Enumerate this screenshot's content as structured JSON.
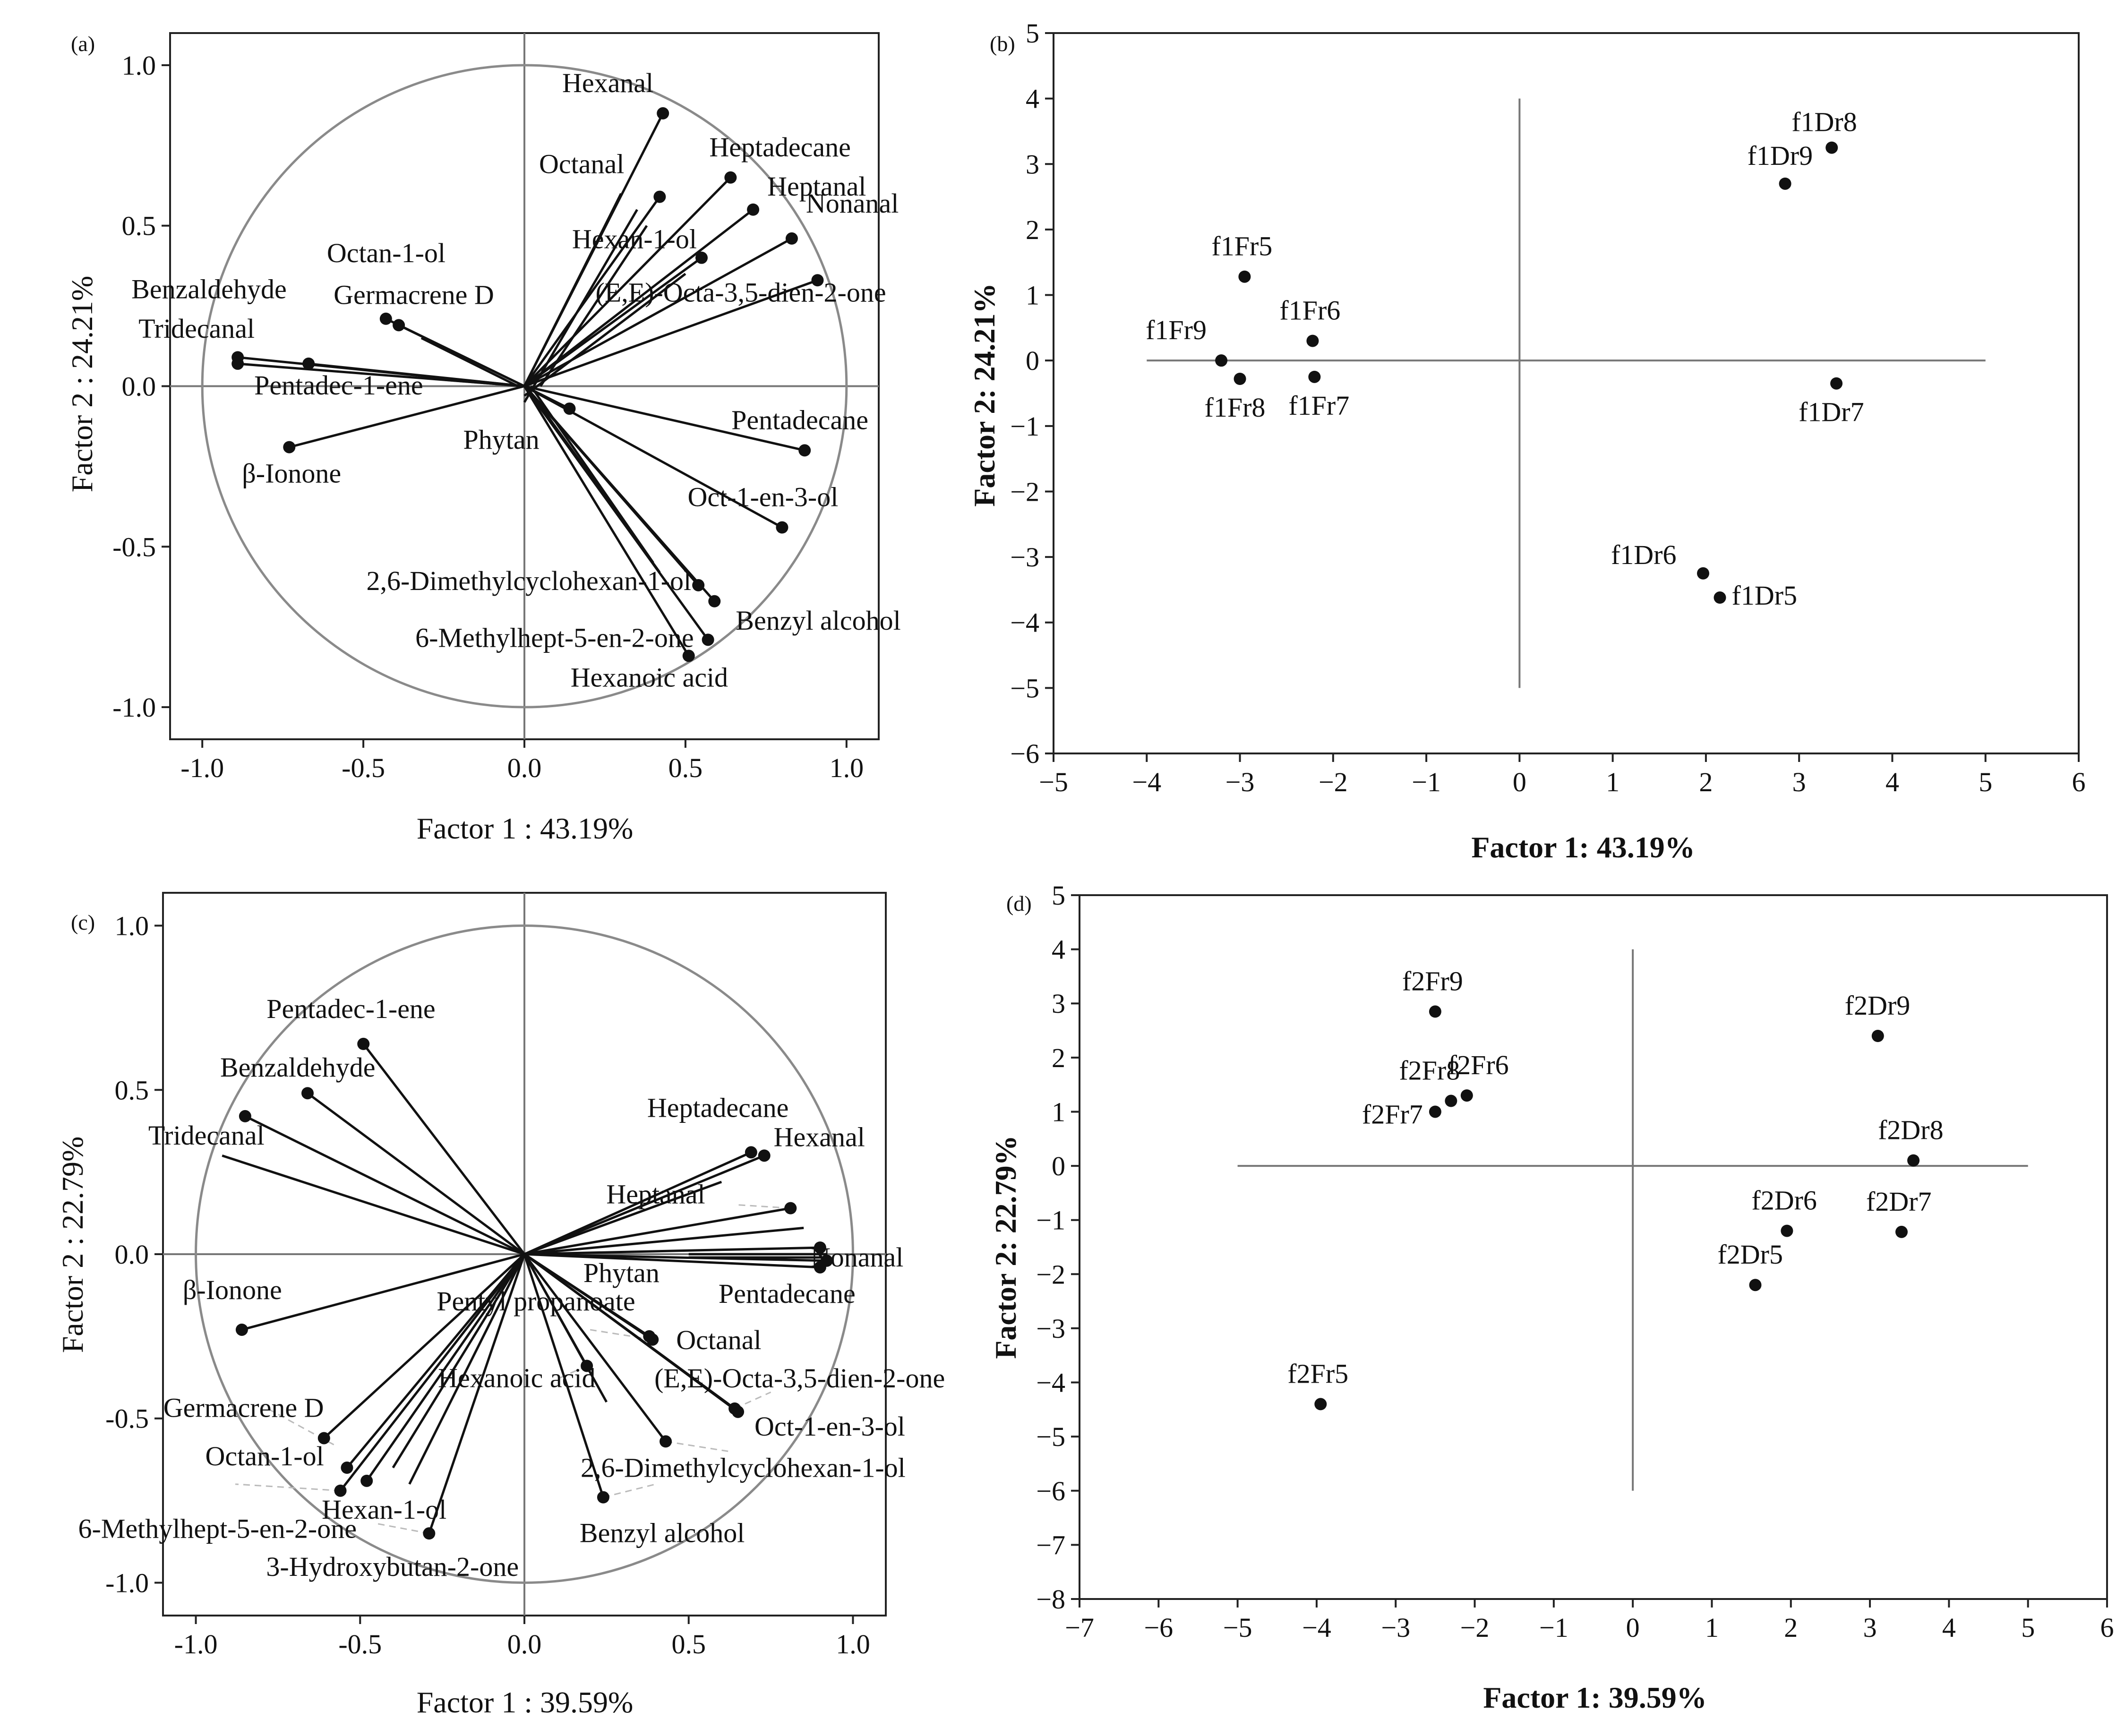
{
  "chart_data": [
    {
      "panel": "(a)",
      "type": "scatter",
      "subtype": "pca-loadings",
      "xlabel": "Factor 1 : 43.19%",
      "ylabel": "Factor 2 : 24.21%",
      "xlim": [
        -1.1,
        1.1
      ],
      "ylim": [
        -1.1,
        1.1
      ],
      "xticks": [
        -1.0,
        -0.5,
        0.0,
        0.5,
        1.0
      ],
      "yticks": [
        -1.0,
        -0.5,
        0.0,
        0.5,
        1.0
      ],
      "xtick_labels": [
        "-1.0",
        "-0.5",
        "0.0",
        "0.5",
        "1.0"
      ],
      "ytick_labels": [
        "-1.0",
        "-0.5",
        "0.0",
        "0.5",
        "1.0"
      ],
      "unit_circle": true,
      "points": [
        {
          "label": "Hexanal",
          "x": 0.43,
          "y": 0.85
        },
        {
          "label": "Octanal",
          "x": 0.42,
          "y": 0.59
        },
        {
          "label": "Heptadecane",
          "x": 0.64,
          "y": 0.65
        },
        {
          "label": "Heptanal",
          "x": 0.71,
          "y": 0.55
        },
        {
          "label": "Nonanal",
          "x": 0.83,
          "y": 0.46
        },
        {
          "label": "Hexan-1-ol",
          "x": 0.55,
          "y": 0.4
        },
        {
          "label": "(E,E)-Octa-3,5-dien-2-one",
          "x": 0.91,
          "y": 0.33
        },
        {
          "label": "Octan-1-ol",
          "x": -0.43,
          "y": 0.21
        },
        {
          "label": "Germacrene D",
          "x": -0.39,
          "y": 0.19
        },
        {
          "label": "Benzaldehyde",
          "x": -0.89,
          "y": 0.09
        },
        {
          "label": "Tridecanal",
          "x": -0.89,
          "y": 0.07
        },
        {
          "label": "Pentadec-1-ene",
          "x": -0.67,
          "y": 0.07
        },
        {
          "label": "β-Ionone",
          "x": -0.73,
          "y": -0.19
        },
        {
          "label": "Phytan",
          "x": 0.14,
          "y": -0.07
        },
        {
          "label": "Pentadecane",
          "x": 0.87,
          "y": -0.2
        },
        {
          "label": "Oct-1-en-3-ol",
          "x": 0.8,
          "y": -0.44
        },
        {
          "label": "2,6-Dimethylcyclohexan-1-ol",
          "x": 0.54,
          "y": -0.62
        },
        {
          "label": "Benzyl alcohol",
          "x": 0.59,
          "y": -0.67
        },
        {
          "label": "6-Methylhept-5-en-2-one",
          "x": 0.57,
          "y": -0.79
        },
        {
          "label": "Hexanoic acid",
          "x": 0.51,
          "y": -0.84
        }
      ]
    },
    {
      "panel": "(b)",
      "type": "scatter",
      "subtype": "pca-scores",
      "xlabel": "Factor 1: 43.19%",
      "ylabel": "Factor 2: 24.21%",
      "xlim": [
        -5,
        6
      ],
      "ylim": [
        -6,
        5
      ],
      "xticks": [
        -5,
        -4,
        -3,
        -2,
        -1,
        0,
        1,
        2,
        3,
        4,
        5,
        6
      ],
      "yticks": [
        -6,
        -5,
        -4,
        -3,
        -2,
        -1,
        0,
        1,
        2,
        3,
        4,
        5
      ],
      "xtick_labels": [
        "−5",
        "−4",
        "−3",
        "−2",
        "−1",
        "0",
        "1",
        "2",
        "3",
        "4",
        "5",
        "6"
      ],
      "ytick_labels": [
        "−6",
        "−5",
        "−4",
        "−3",
        "−2",
        "−1",
        "0",
        "1",
        "2",
        "3",
        "4",
        "5"
      ],
      "reference_lines": {
        "horizontal": {
          "y": 0,
          "from": -4,
          "to": 5
        },
        "vertical": {
          "x": 0,
          "from": -5,
          "to": 4
        }
      },
      "points": [
        {
          "label": "f1Dr8",
          "x": 3.35,
          "y": 3.25
        },
        {
          "label": "f1Dr9",
          "x": 2.85,
          "y": 2.7
        },
        {
          "label": "f1Fr5",
          "x": -2.95,
          "y": 1.28
        },
        {
          "label": "f1Fr6",
          "x": -2.22,
          "y": 0.3
        },
        {
          "label": "f1Fr9",
          "x": -3.2,
          "y": 0.0
        },
        {
          "label": "f1Fr8",
          "x": -3.0,
          "y": -0.28
        },
        {
          "label": "f1Fr7",
          "x": -2.2,
          "y": -0.25
        },
        {
          "label": "f1Dr7",
          "x": 3.4,
          "y": -0.35
        },
        {
          "label": "f1Dr6",
          "x": 1.97,
          "y": -3.25
        },
        {
          "label": "f1Dr5",
          "x": 2.15,
          "y": -3.62
        }
      ]
    },
    {
      "panel": "(c)",
      "type": "scatter",
      "subtype": "pca-loadings",
      "xlabel": "Factor 1 : 39.59%",
      "ylabel": "Factor 2 : 22.79%",
      "xlim": [
        -1.1,
        1.1
      ],
      "ylim": [
        -1.1,
        1.1
      ],
      "xticks": [
        -1.0,
        -0.5,
        0.0,
        0.5,
        1.0
      ],
      "yticks": [
        -1.0,
        -0.5,
        0.0,
        0.5,
        1.0
      ],
      "xtick_labels": [
        "-1.0",
        "-0.5",
        "0.0",
        "0.5",
        "1.0"
      ],
      "ytick_labels": [
        "-1.0",
        "-0.5",
        "0.0",
        "0.5",
        "1.0"
      ],
      "unit_circle": true,
      "points": [
        {
          "label": "Pentadec-1-ene",
          "x": -0.49,
          "y": 0.64
        },
        {
          "label": "Benzaldehyde",
          "x": -0.66,
          "y": 0.49
        },
        {
          "label": "Tridecanal",
          "x": -0.85,
          "y": 0.42
        },
        {
          "label": "Heptadecane",
          "x": 0.69,
          "y": 0.31
        },
        {
          "label": "Hexanal",
          "x": 0.73,
          "y": 0.3
        },
        {
          "label": "Heptanal",
          "x": 0.81,
          "y": 0.14
        },
        {
          "label": "Nonanal",
          "x": 0.9,
          "y": 0.02
        },
        {
          "label": "Phytan",
          "x": 0.92,
          "y": -0.02
        },
        {
          "label": "Pentadecane",
          "x": 0.9,
          "y": -0.04
        },
        {
          "label": "β-Ionone",
          "x": -0.86,
          "y": -0.23
        },
        {
          "label": "Pentyl propanoate",
          "x": 0.38,
          "y": -0.25
        },
        {
          "label": "Octanal",
          "x": 0.39,
          "y": -0.26
        },
        {
          "label": "Hexanoic acid",
          "x": 0.19,
          "y": -0.34
        },
        {
          "label": "(E,E)-Octa-3,5-dien-2-one",
          "x": 0.64,
          "y": -0.47
        },
        {
          "label": "Oct-1-en-3-ol",
          "x": 0.65,
          "y": -0.48
        },
        {
          "label": "Germacrene D",
          "x": -0.61,
          "y": -0.56
        },
        {
          "label": "2,6-Dimethylcyclohexan-1-ol",
          "x": 0.43,
          "y": -0.57
        },
        {
          "label": "Octan-1-ol",
          "x": -0.54,
          "y": -0.65
        },
        {
          "label": "6-Methylhept-5-en-2-one",
          "x": -0.56,
          "y": -0.72
        },
        {
          "label": "Hexan-1-ol",
          "x": -0.48,
          "y": -0.69
        },
        {
          "label": "Benzyl alcohol",
          "x": 0.24,
          "y": -0.74
        },
        {
          "label": "3-Hydroxybutan-2-one",
          "x": -0.29,
          "y": -0.85
        }
      ]
    },
    {
      "panel": "(d)",
      "type": "scatter",
      "subtype": "pca-scores",
      "xlabel": "Factor 1: 39.59%",
      "ylabel": "Factor 2: 22.79%",
      "xlim": [
        -7,
        6
      ],
      "ylim": [
        -8,
        5
      ],
      "xticks": [
        -7,
        -6,
        -5,
        -4,
        -3,
        -2,
        -1,
        0,
        1,
        2,
        3,
        4,
        5,
        6
      ],
      "yticks": [
        -8,
        -7,
        -6,
        -5,
        -4,
        -3,
        -2,
        -1,
        0,
        1,
        2,
        3,
        4,
        5
      ],
      "xtick_labels": [
        "−7",
        "−6",
        "−5",
        "−4",
        "−3",
        "−2",
        "−1",
        "0",
        "1",
        "2",
        "3",
        "4",
        "5",
        "6"
      ],
      "ytick_labels": [
        "−8",
        "−7",
        "−6",
        "−5",
        "−4",
        "−3",
        "−2",
        "−1",
        "0",
        "1",
        "2",
        "3",
        "4",
        "5"
      ],
      "reference_lines": {
        "horizontal": {
          "y": 0,
          "from": -5,
          "to": 5
        },
        "vertical": {
          "x": 0,
          "from": -6,
          "to": 4
        }
      },
      "points": [
        {
          "label": "f2Fr9",
          "x": -2.5,
          "y": 2.85
        },
        {
          "label": "f2Dr9",
          "x": 3.1,
          "y": 2.4
        },
        {
          "label": "f2Fr8",
          "x": -2.3,
          "y": 1.2
        },
        {
          "label": "f2Fr6",
          "x": -2.1,
          "y": 1.3
        },
        {
          "label": "f2Fr7",
          "x": -2.5,
          "y": 1.0
        },
        {
          "label": "f2Dr8",
          "x": 3.55,
          "y": 0.1
        },
        {
          "label": "f2Dr6",
          "x": 1.95,
          "y": -1.2
        },
        {
          "label": "f2Dr7",
          "x": 3.4,
          "y": -1.22
        },
        {
          "label": "f2Dr5",
          "x": 1.55,
          "y": -2.2
        },
        {
          "label": "f2Fr5",
          "x": -3.95,
          "y": -4.4
        }
      ]
    }
  ]
}
